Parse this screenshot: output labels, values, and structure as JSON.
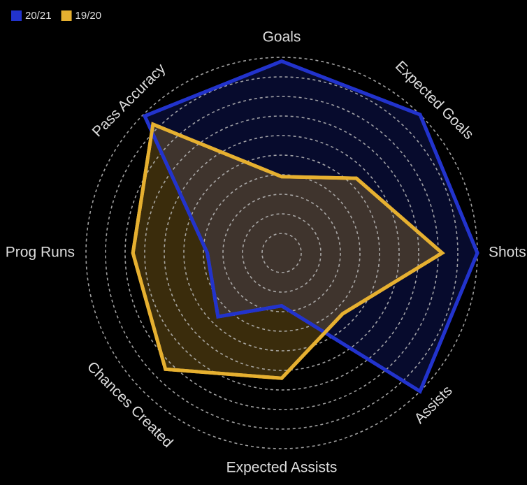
{
  "chart_data": {
    "type": "radar",
    "categories": [
      "Goals",
      "Expected Goals",
      "Shots",
      "Assists",
      "Expected Assists",
      "Chances Created",
      "Prog Runs",
      "Pass Accuracy"
    ],
    "series": [
      {
        "name": "20/21",
        "color": "#2233cc",
        "values": [
          0.98,
          1.0,
          1.0,
          1.0,
          0.27,
          0.46,
          0.38,
          0.99
        ]
      },
      {
        "name": "19/20",
        "color": "#e6b030",
        "values": [
          0.39,
          0.54,
          0.82,
          0.44,
          0.64,
          0.84,
          0.76,
          0.93
        ]
      }
    ],
    "rlim": [
      0,
      1
    ],
    "rticks": [
      0.1,
      0.2,
      0.3,
      0.4,
      0.5,
      0.6,
      0.7,
      0.8,
      0.9,
      1.0
    ],
    "grid": true,
    "legend": "top-left"
  }
}
